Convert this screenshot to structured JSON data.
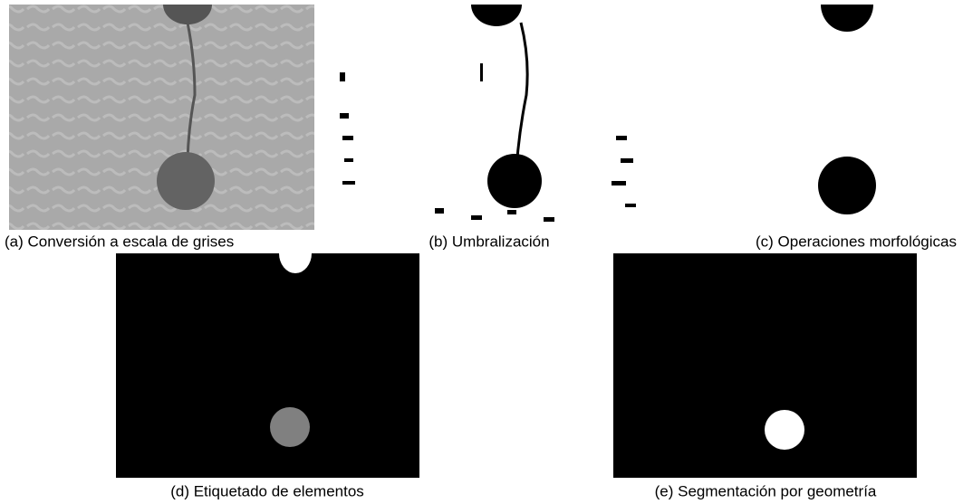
{
  "figure": {
    "panels": [
      {
        "caption": "(a) Conversión a escala de grises"
      },
      {
        "caption": "(b) Umbralización"
      },
      {
        "caption": "(c) Operaciones morfológicas"
      },
      {
        "caption": "(d) Etiquetado de elementos"
      },
      {
        "caption": "(e) Segmentación por geometría"
      }
    ]
  }
}
